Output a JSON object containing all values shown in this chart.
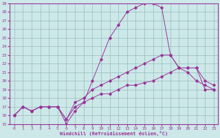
{
  "xlabel": "Windchill (Refroidissement éolien,°C)",
  "xlim": [
    -0.5,
    23.5
  ],
  "ylim": [
    15,
    29
  ],
  "xticks": [
    0,
    1,
    2,
    3,
    4,
    5,
    6,
    7,
    8,
    9,
    10,
    11,
    12,
    13,
    14,
    15,
    16,
    17,
    18,
    19,
    20,
    21,
    22,
    23
  ],
  "yticks": [
    15,
    16,
    17,
    18,
    19,
    20,
    21,
    22,
    23,
    24,
    25,
    26,
    27,
    28,
    29
  ],
  "line_color": "#993399",
  "bg_color": "#cce8e8",
  "grid_color": "#99bbbb",
  "lines": [
    {
      "x": [
        0,
        1,
        2,
        3,
        4,
        5,
        6,
        7,
        8,
        9,
        10,
        11,
        12,
        13,
        14,
        15,
        16,
        17,
        18,
        19,
        20,
        21,
        22,
        23
      ],
      "y": [
        16,
        17,
        16.5,
        17,
        17,
        17,
        15,
        16.5,
        17.5,
        20,
        22.5,
        25,
        26.5,
        28,
        28.5,
        29,
        29,
        28.5,
        23,
        21.5,
        21,
        20,
        19.5,
        19
      ]
    },
    {
      "x": [
        0,
        1,
        2,
        3,
        4,
        5,
        6,
        7,
        8,
        9,
        10,
        11,
        12,
        13,
        14,
        15,
        16,
        17,
        18,
        19,
        20,
        21,
        22,
        23
      ],
      "y": [
        16,
        17,
        16.5,
        17,
        17,
        17,
        15.5,
        17.5,
        18,
        19,
        19.5,
        20,
        20.5,
        21,
        21.5,
        22,
        22.5,
        23,
        23,
        21.5,
        21.5,
        21.5,
        20,
        19.5
      ]
    },
    {
      "x": [
        0,
        1,
        2,
        3,
        4,
        5,
        6,
        7,
        8,
        9,
        10,
        11,
        12,
        13,
        14,
        15,
        16,
        17,
        18,
        19,
        20,
        21,
        22,
        23
      ],
      "y": [
        16,
        17,
        16.5,
        17,
        17,
        17,
        15.5,
        17,
        17.5,
        18,
        18.5,
        18.5,
        19,
        19.5,
        19.5,
        19.8,
        20,
        20.5,
        21,
        21.5,
        21.5,
        21.5,
        19,
        19
      ]
    }
  ]
}
